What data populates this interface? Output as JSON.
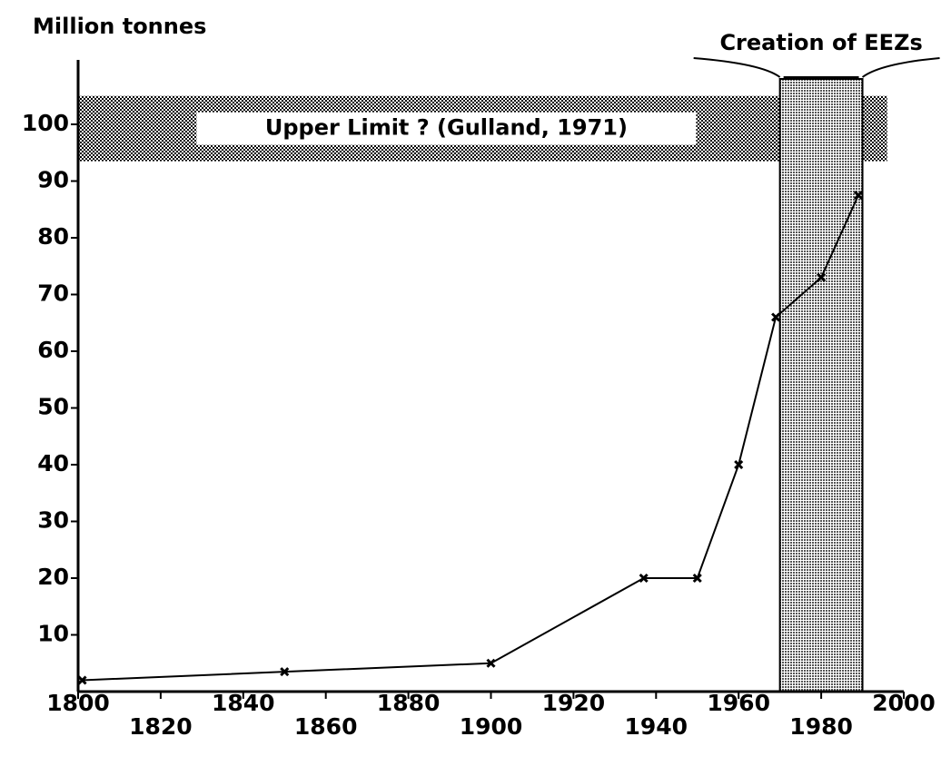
{
  "chart_data": {
    "type": "line",
    "y_label": "Million tonnes",
    "x": [
      1801,
      1850,
      1900,
      1937,
      1950,
      1960,
      1969,
      1980,
      1989
    ],
    "series": [
      {
        "color": "#000000",
        "values": [
          2,
          3.5,
          5,
          20,
          20,
          40,
          66,
          73,
          87.5
        ]
      }
    ],
    "xlim": [
      1800,
      2000
    ],
    "xticks": [
      1800,
      1820,
      1840,
      1860,
      1880,
      1900,
      1920,
      1940,
      1960,
      1980,
      2000
    ],
    "ylim": [
      0,
      110
    ],
    "yticks": [
      10,
      20,
      30,
      40,
      50,
      60,
      70,
      80,
      90,
      100
    ],
    "annotations": [
      {
        "label": "Upper Limit ? (Gulland, 1971)",
        "x": [
          1800,
          1996
        ],
        "y": [
          93.5,
          105
        ]
      },
      {
        "label": "Creation of EEZs",
        "x": [
          1970,
          1990
        ],
        "y": [
          0,
          108
        ]
      }
    ]
  }
}
